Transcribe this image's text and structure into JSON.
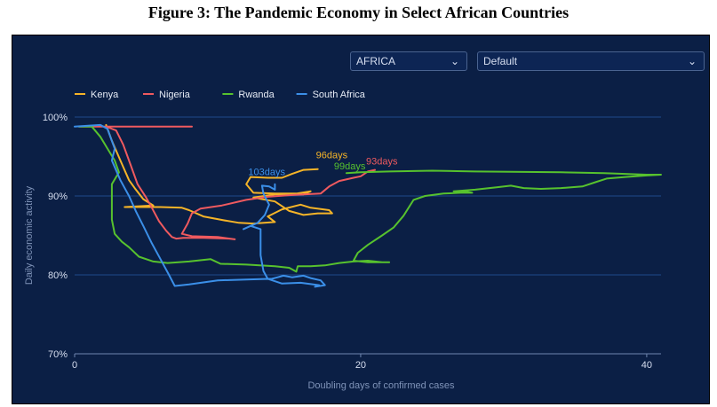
{
  "figure_title": "Figure 3: The Pandemic Economy in Select African Countries",
  "controls": {
    "region": {
      "value": "AFRICA"
    },
    "view": {
      "value": "Default"
    }
  },
  "chart_data": {
    "type": "line",
    "title": "",
    "xlabel": "Doubling days of confirmed cases",
    "ylabel": "Daily economic activity",
    "xlim": [
      0,
      41
    ],
    "ylim": [
      70,
      100
    ],
    "x_ticks": [
      0,
      20,
      40
    ],
    "y_ticks": [
      70,
      80,
      90,
      100
    ],
    "y_tick_labels": [
      "70%",
      "80%",
      "90%",
      "100%"
    ],
    "grid": true,
    "legend_position": "top-left",
    "series": [
      {
        "name": "Kenya",
        "color": "#f5b428",
        "end_label": "96days",
        "points": [
          [
            2.2,
            99
          ],
          [
            2.6,
            97
          ],
          [
            3.2,
            94.5
          ],
          [
            3.8,
            92
          ],
          [
            4.2,
            91
          ],
          [
            4.8,
            89.6
          ],
          [
            5.5,
            88.8
          ],
          [
            3.5,
            88.6
          ],
          [
            6,
            88.6
          ],
          [
            7.5,
            88.5
          ],
          [
            8,
            88.2
          ],
          [
            9,
            87.4
          ],
          [
            10.5,
            86.9
          ],
          [
            11.5,
            86.6
          ],
          [
            12.5,
            86.5
          ],
          [
            14,
            86.7
          ],
          [
            13.5,
            87.4
          ],
          [
            14.5,
            88.3
          ],
          [
            15.8,
            88.9
          ],
          [
            16.5,
            88.5
          ],
          [
            17.8,
            88.2
          ],
          [
            18,
            87.8
          ],
          [
            17,
            87.8
          ],
          [
            16,
            87.6
          ],
          [
            15,
            88.1
          ],
          [
            14,
            89.3
          ],
          [
            12.5,
            89.8
          ],
          [
            14,
            90.2
          ],
          [
            16,
            90.2
          ],
          [
            16.5,
            90.6
          ],
          [
            15.5,
            90.3
          ],
          [
            14,
            90.3
          ],
          [
            12.5,
            90.4
          ],
          [
            12,
            91.5
          ],
          [
            12.3,
            92.4
          ],
          [
            13.5,
            92.3
          ],
          [
            14.5,
            92.3
          ],
          [
            15.2,
            92.8
          ],
          [
            16,
            93.3
          ],
          [
            17,
            93.4
          ]
        ]
      },
      {
        "name": "Nigeria",
        "color": "#ef5a5f",
        "end_label": "93days",
        "points": [
          [
            0.3,
            98.8
          ],
          [
            8.2,
            98.8
          ],
          [
            2.2,
            98.8
          ],
          [
            2.9,
            98.3
          ],
          [
            3.4,
            96.5
          ],
          [
            3.9,
            94
          ],
          [
            4.4,
            91.5
          ],
          [
            5,
            89.8
          ],
          [
            5.4,
            88.5
          ],
          [
            5.9,
            86.8
          ],
          [
            6.4,
            85.6
          ],
          [
            6.8,
            84.8
          ],
          [
            7.1,
            84.6
          ],
          [
            7.6,
            84.7
          ],
          [
            9,
            84.7
          ],
          [
            10.8,
            84.6
          ],
          [
            11.2,
            84.5
          ],
          [
            10,
            84.8
          ],
          [
            8.2,
            84.9
          ],
          [
            7.5,
            85.2
          ],
          [
            7.9,
            86.5
          ],
          [
            8.2,
            87.8
          ],
          [
            8.8,
            88.4
          ],
          [
            10.3,
            88.8
          ],
          [
            12,
            89.5
          ],
          [
            13.5,
            89.9
          ],
          [
            15,
            90.1
          ],
          [
            16,
            90.2
          ],
          [
            17.2,
            90.3
          ],
          [
            17.8,
            91.2
          ],
          [
            18.5,
            91.9
          ],
          [
            19.5,
            92.3
          ],
          [
            20,
            92.5
          ],
          [
            20.5,
            93.1
          ],
          [
            21,
            93.3
          ]
        ]
      },
      {
        "name": "Rwanda",
        "color": "#57c22e",
        "end_label": "99days",
        "points": [
          [
            0.3,
            98.8
          ],
          [
            1.2,
            98.8
          ],
          [
            1.8,
            97.5
          ],
          [
            2.3,
            96
          ],
          [
            2.8,
            94.5
          ],
          [
            3.1,
            93
          ],
          [
            2.6,
            91.5
          ],
          [
            2.6,
            88.5
          ],
          [
            2.6,
            87
          ],
          [
            2.8,
            85.2
          ],
          [
            3.3,
            84.2
          ],
          [
            3.8,
            83.5
          ],
          [
            4.5,
            82.3
          ],
          [
            5.5,
            81.7
          ],
          [
            6.5,
            81.5
          ],
          [
            8,
            81.7
          ],
          [
            9.5,
            82
          ],
          [
            10.2,
            81.4
          ],
          [
            12,
            81.3
          ],
          [
            14,
            81.1
          ],
          [
            15,
            80.9
          ],
          [
            15.5,
            80.4
          ],
          [
            15.6,
            81.1
          ],
          [
            16.5,
            81.1
          ],
          [
            17.5,
            81.2
          ],
          [
            18.5,
            81.5
          ],
          [
            19.5,
            81.7
          ],
          [
            20.5,
            81.8
          ],
          [
            21.5,
            81.6
          ],
          [
            22,
            81.6
          ],
          [
            20.5,
            81.6
          ],
          [
            19.5,
            81.8
          ],
          [
            19.8,
            82.8
          ],
          [
            20.5,
            83.8
          ],
          [
            21.5,
            85
          ],
          [
            22.3,
            86
          ],
          [
            23,
            87.5
          ],
          [
            23.7,
            89.5
          ],
          [
            24.5,
            90
          ],
          [
            25.8,
            90.3
          ],
          [
            27,
            90.4
          ],
          [
            27.8,
            90.4
          ],
          [
            27.5,
            90.5
          ],
          [
            26.5,
            90.6
          ],
          [
            28,
            90.8
          ],
          [
            29.5,
            91.1
          ],
          [
            30.5,
            91.3
          ],
          [
            31.4,
            91
          ],
          [
            32.6,
            90.9
          ],
          [
            34,
            91
          ],
          [
            35.5,
            91.2
          ],
          [
            36.5,
            91.8
          ],
          [
            37.2,
            92.2
          ],
          [
            38.5,
            92.4
          ],
          [
            40,
            92.6
          ],
          [
            41,
            92.7
          ],
          [
            40,
            92.7
          ],
          [
            37,
            92.9
          ],
          [
            34,
            93
          ],
          [
            28,
            93.1
          ],
          [
            25,
            93.2
          ],
          [
            22,
            93.1
          ],
          [
            20,
            93.0
          ],
          [
            19,
            92.9
          ]
        ]
      },
      {
        "name": "South Africa",
        "color": "#3b8fe8",
        "end_label": "103days",
        "points": [
          [
            0,
            98.8
          ],
          [
            1.8,
            99
          ],
          [
            2.3,
            98.5
          ],
          [
            2.5,
            97.5
          ],
          [
            2.8,
            96
          ],
          [
            2.6,
            94.5
          ],
          [
            3.2,
            92
          ],
          [
            3.8,
            90
          ],
          [
            4.3,
            88
          ],
          [
            4.8,
            86.2
          ],
          [
            5.4,
            84
          ],
          [
            6,
            82
          ],
          [
            6.6,
            80
          ],
          [
            7,
            78.6
          ],
          [
            8,
            78.8
          ],
          [
            10,
            79.3
          ],
          [
            12,
            79.4
          ],
          [
            13.8,
            79.5
          ],
          [
            14.2,
            79.7
          ],
          [
            14.6,
            79.9
          ],
          [
            15.2,
            79.7
          ],
          [
            16,
            79.9
          ],
          [
            16.5,
            79.6
          ],
          [
            17.2,
            79.3
          ],
          [
            17.5,
            78.7
          ],
          [
            16.8,
            78.5
          ],
          [
            17.1,
            78.7
          ],
          [
            15.8,
            79
          ],
          [
            14.5,
            78.9
          ],
          [
            13.5,
            79.5
          ],
          [
            13.2,
            80.5
          ],
          [
            13,
            82.5
          ],
          [
            13,
            84.5
          ],
          [
            13,
            85.8
          ],
          [
            12.3,
            86.2
          ],
          [
            11.8,
            85.8
          ],
          [
            12.8,
            86.6
          ],
          [
            13.3,
            87.6
          ],
          [
            13.6,
            88.9
          ],
          [
            13.2,
            90.3
          ],
          [
            13.1,
            91.3
          ],
          [
            13.6,
            91.2
          ],
          [
            14,
            90.8
          ],
          [
            14,
            91.5
          ]
        ]
      }
    ]
  }
}
